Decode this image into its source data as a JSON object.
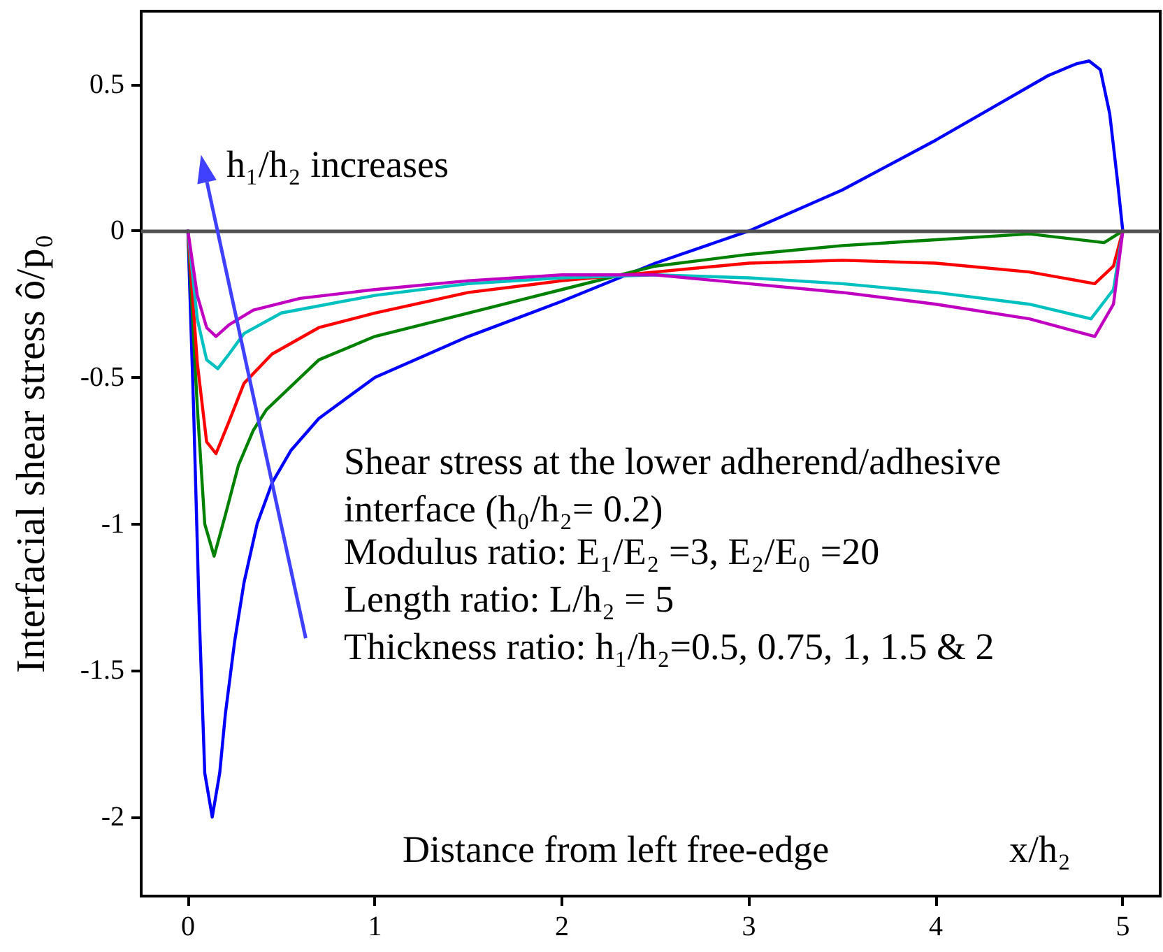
{
  "chart_data": {
    "type": "line",
    "xlabel": "Distance from left free-edge",
    "ylabel": "Interfacial shear stress ô/p₀",
    "xlim": [
      -0.25,
      5.2
    ],
    "ylim": [
      -2.27,
      0.75
    ],
    "xticks": [
      0,
      1,
      2,
      3,
      4,
      5
    ],
    "yticks": [
      -2,
      -1.5,
      -1,
      -0.5,
      0,
      0.5
    ],
    "grid": false,
    "marker": "none",
    "line_style": "solid",
    "ref_lines": [
      {
        "axis": "y",
        "value": 0,
        "color": "#505050"
      }
    ],
    "annotations": [
      "h₁/h₂ increases",
      "x/h₂",
      "Shear stress at the lower adherend/adhesive interface (h₀/h₂= 0.2)",
      "Modulus ratio: E₁/E₂ =3, E₂/E₀ =20",
      "Length ratio: L/h₂ = 5",
      "Thickness ratio: h₁/h₂=0.5, 0.75, 1, 1.5 & 2"
    ],
    "series": [
      {
        "color": "#0000ff",
        "x": [
          0,
          0.03,
          0.06,
          0.09,
          0.13,
          0.17,
          0.2,
          0.25,
          0.3,
          0.37,
          0.45,
          0.55,
          0.7,
          1,
          1.5,
          2,
          2.5,
          3,
          3.5,
          4,
          4.3,
          4.6,
          4.75,
          4.82,
          4.88,
          4.93,
          4.97,
          5.0
        ],
        "values": [
          0,
          -0.6,
          -1.3,
          -1.85,
          -2.0,
          -1.85,
          -1.65,
          -1.4,
          -1.2,
          -1.0,
          -0.86,
          -0.75,
          -0.64,
          -0.5,
          -0.36,
          -0.24,
          -0.11,
          0.0,
          0.14,
          0.31,
          0.42,
          0.53,
          0.57,
          0.58,
          0.55,
          0.4,
          0.18,
          0
        ]
      },
      {
        "color": "#008000",
        "x": [
          0,
          0.05,
          0.09,
          0.14,
          0.2,
          0.27,
          0.35,
          0.42,
          0.7,
          1,
          1.5,
          2,
          2.5,
          3,
          3.5,
          4,
          4.5,
          4.9,
          5
        ],
        "values": [
          0,
          -0.6,
          -1.0,
          -1.11,
          -0.97,
          -0.8,
          -0.68,
          -0.61,
          -0.44,
          -0.36,
          -0.28,
          -0.2,
          -0.12,
          -0.08,
          -0.05,
          -0.03,
          -0.01,
          -0.04,
          0
        ]
      },
      {
        "color": "#ff0000",
        "x": [
          0,
          0.05,
          0.1,
          0.15,
          0.22,
          0.3,
          0.45,
          0.7,
          1,
          1.5,
          2,
          2.5,
          3,
          3.5,
          4,
          4.5,
          4.85,
          4.95,
          5
        ],
        "values": [
          0,
          -0.45,
          -0.72,
          -0.76,
          -0.65,
          -0.52,
          -0.42,
          -0.33,
          -0.28,
          -0.21,
          -0.17,
          -0.14,
          -0.11,
          -0.1,
          -0.11,
          -0.14,
          -0.18,
          -0.12,
          0
        ]
      },
      {
        "color": "#00c0c0",
        "x": [
          0,
          0.05,
          0.1,
          0.16,
          0.22,
          0.3,
          0.5,
          1,
          1.5,
          2,
          2.5,
          3,
          3.5,
          4,
          4.5,
          4.83,
          4.95,
          5
        ],
        "values": [
          0,
          -0.3,
          -0.44,
          -0.47,
          -0.42,
          -0.35,
          -0.28,
          -0.22,
          -0.18,
          -0.16,
          -0.15,
          -0.16,
          -0.18,
          -0.21,
          -0.25,
          -0.3,
          -0.2,
          0
        ]
      },
      {
        "color": "#c000c0",
        "x": [
          0,
          0.05,
          0.1,
          0.15,
          0.22,
          0.35,
          0.6,
          1,
          1.5,
          2,
          2.5,
          3,
          3.5,
          4,
          4.5,
          4.85,
          4.95,
          5
        ],
        "values": [
          0,
          -0.22,
          -0.33,
          -0.36,
          -0.32,
          -0.27,
          -0.23,
          -0.2,
          -0.17,
          -0.15,
          -0.15,
          -0.18,
          -0.21,
          -0.25,
          -0.3,
          -0.36,
          -0.25,
          0
        ]
      }
    ]
  }
}
